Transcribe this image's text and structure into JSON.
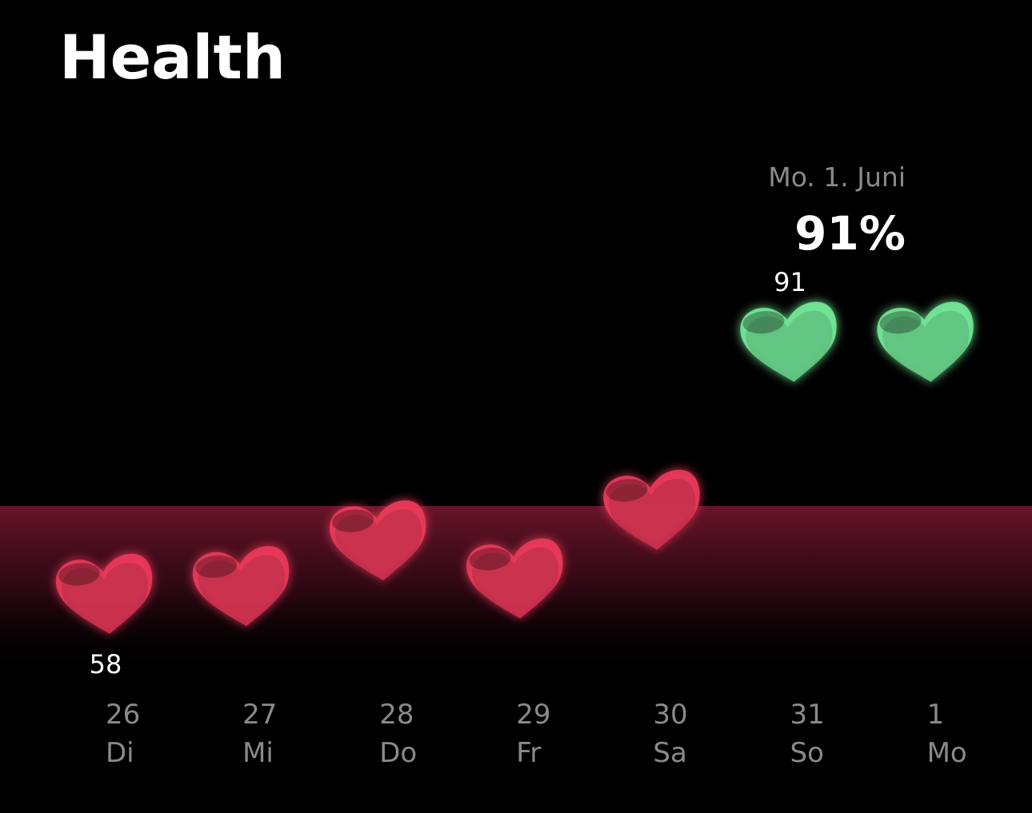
{
  "chart_data": {
    "type": "hearts",
    "title": "Health",
    "categories": [
      "26",
      "27",
      "28",
      "29",
      "30",
      "31",
      "1"
    ],
    "weekdays": [
      "Di",
      "Mi",
      "Do",
      "Fr",
      "Sa",
      "So",
      "Mo"
    ],
    "values": [
      58,
      59,
      65,
      60,
      69,
      91,
      91
    ],
    "value_labels": [
      "58",
      null,
      null,
      null,
      null,
      "91",
      null
    ],
    "colors": [
      "#e8385a",
      "#e8385a",
      "#e8385a",
      "#e8385a",
      "#e8385a",
      "#72e596",
      "#72e596"
    ],
    "selected_index": 6,
    "selected_date": "Mo. 1. Juni",
    "selected_value_label": "91%"
  }
}
